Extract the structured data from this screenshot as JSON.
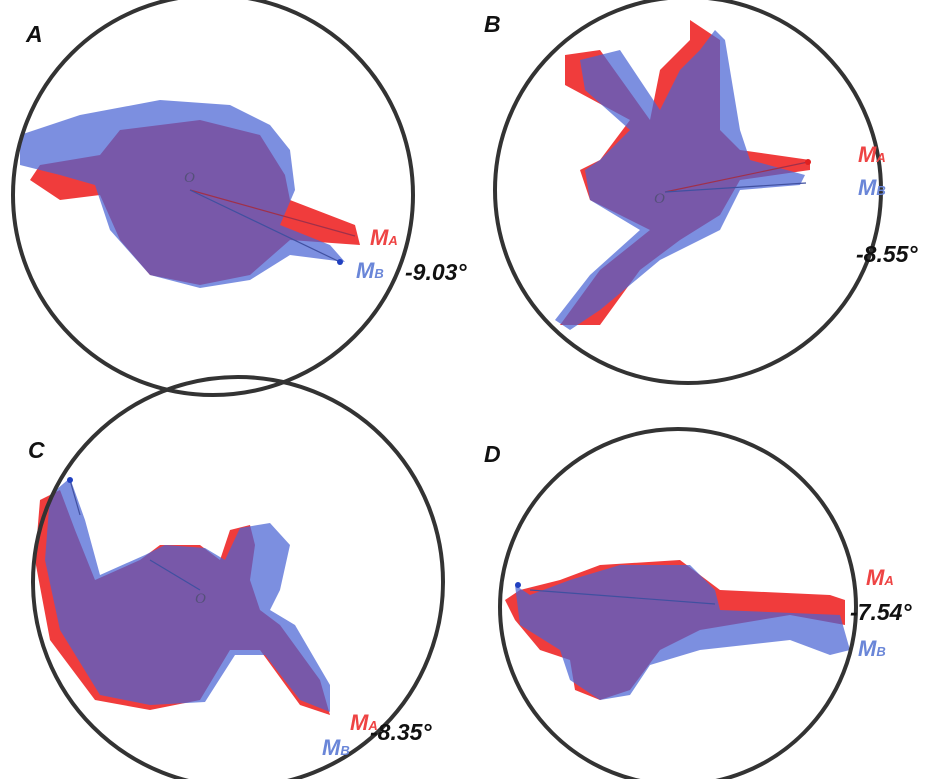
{
  "panels": [
    {
      "label": "A",
      "origin": "O",
      "marker_a": {
        "main": "M",
        "sub": "A"
      },
      "marker_b": {
        "main": "M",
        "sub": "B"
      },
      "angle": "-9.03°"
    },
    {
      "label": "B",
      "origin": "O",
      "marker_a": {
        "main": "M",
        "sub": "A"
      },
      "marker_b": {
        "main": "M",
        "sub": "B"
      },
      "angle": "-8.55°"
    },
    {
      "label": "C",
      "origin": "O",
      "marker_a": {
        "main": "M",
        "sub": "A"
      },
      "marker_b": {
        "main": "M",
        "sub": "B"
      },
      "angle": "-8.35°"
    },
    {
      "label": "D",
      "marker_a": {
        "main": "M",
        "sub": "A"
      },
      "marker_b": {
        "main": "M",
        "sub": "B"
      },
      "angle": "-7.54°"
    }
  ]
}
